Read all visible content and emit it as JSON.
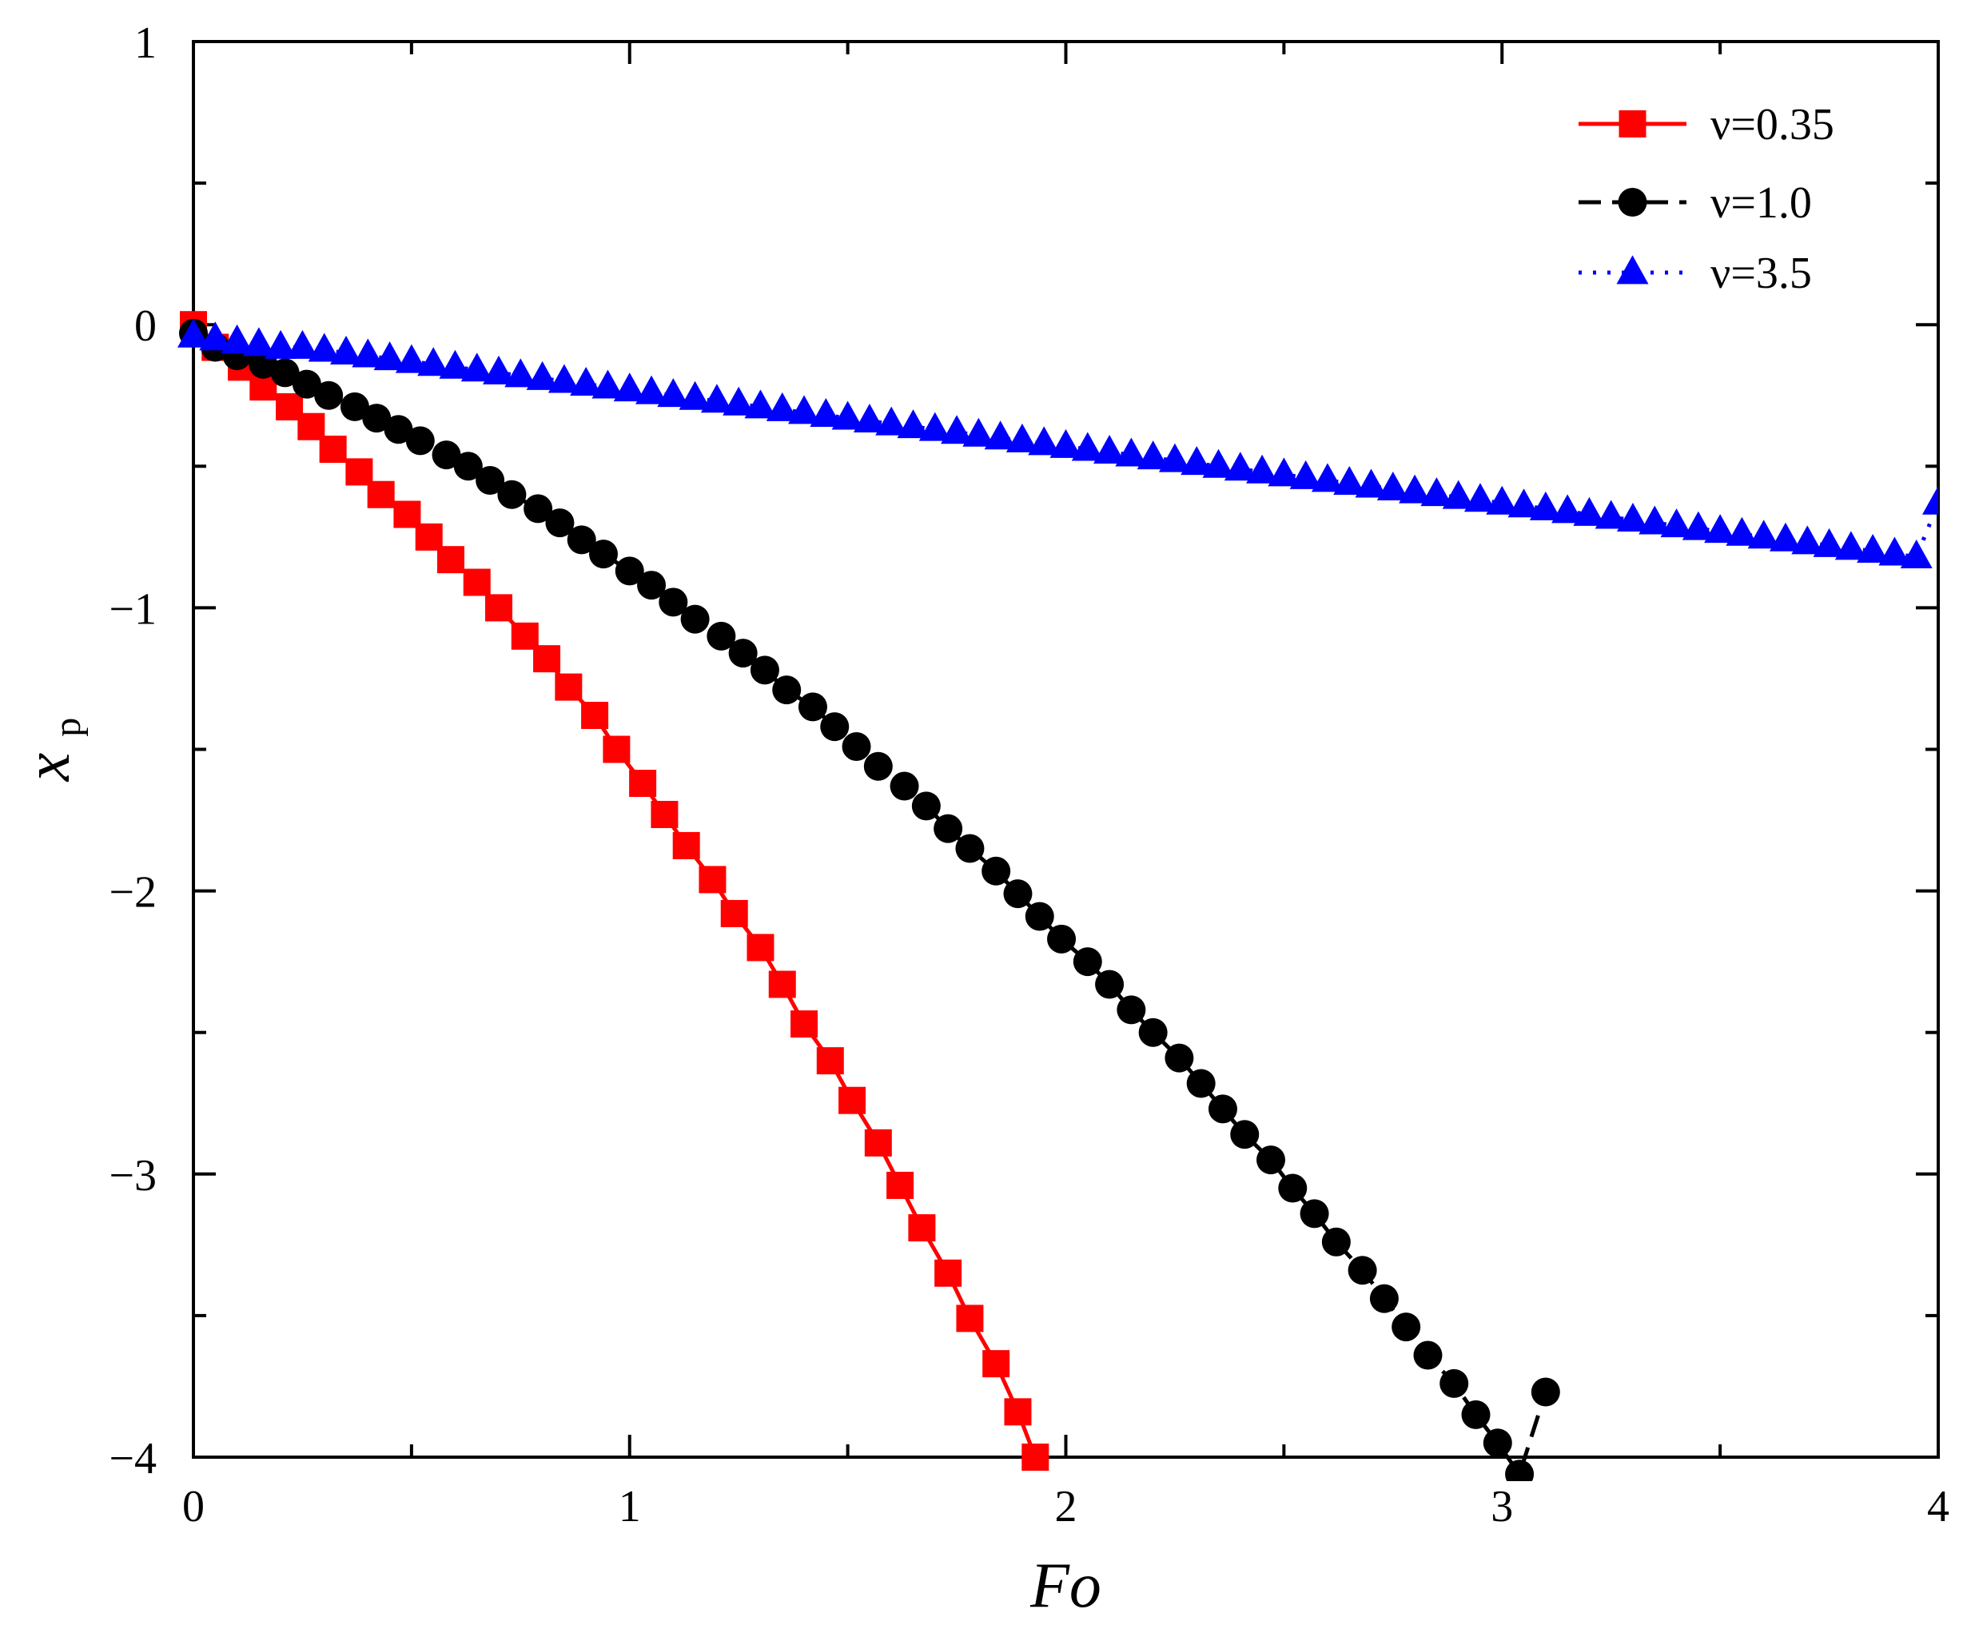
{
  "chart_data": {
    "type": "scatter",
    "xlabel": "Fo",
    "ylabel_main": "x",
    "ylabel_sub": "p",
    "xlim": [
      0,
      4
    ],
    "ylim": [
      -4,
      1
    ],
    "x_ticks": [
      {
        "value": 0,
        "label": "0"
      },
      {
        "value": 1,
        "label": "1"
      },
      {
        "value": 2,
        "label": "2"
      },
      {
        "value": 3,
        "label": "3"
      },
      {
        "value": 4,
        "label": "4"
      }
    ],
    "y_ticks": [
      {
        "value": 1,
        "label": "1"
      },
      {
        "value": 0,
        "label": "0"
      },
      {
        "value": -1,
        "label": "−1"
      },
      {
        "value": -2,
        "label": "−2"
      },
      {
        "value": -3,
        "label": "−3"
      },
      {
        "value": -4,
        "label": "−4"
      }
    ],
    "x_minor_step": 0.5,
    "y_minor_step": 0.5,
    "grid": false,
    "legend_position": "top-right",
    "series": [
      {
        "name": "ν=0.35",
        "color": "#ff0000",
        "marker": "square",
        "line": "solid",
        "points": [
          [
            0,
            0
          ],
          [
            0.05,
            -0.08
          ],
          [
            0.11,
            -0.15
          ],
          [
            0.16,
            -0.22
          ],
          [
            0.22,
            -0.29
          ],
          [
            0.27,
            -0.36
          ],
          [
            0.32,
            -0.44
          ],
          [
            0.38,
            -0.52
          ],
          [
            0.43,
            -0.6
          ],
          [
            0.49,
            -0.67
          ],
          [
            0.54,
            -0.75
          ],
          [
            0.59,
            -0.83
          ],
          [
            0.65,
            -0.91
          ],
          [
            0.7,
            -1.0
          ],
          [
            0.76,
            -1.1
          ],
          [
            0.81,
            -1.18
          ],
          [
            0.86,
            -1.28
          ],
          [
            0.92,
            -1.38
          ],
          [
            0.97,
            -1.5
          ],
          [
            1.03,
            -1.62
          ],
          [
            1.08,
            -1.73
          ],
          [
            1.13,
            -1.84
          ],
          [
            1.19,
            -1.96
          ],
          [
            1.24,
            -2.08
          ],
          [
            1.3,
            -2.2
          ],
          [
            1.35,
            -2.33
          ],
          [
            1.4,
            -2.47
          ],
          [
            1.46,
            -2.6
          ],
          [
            1.51,
            -2.74
          ],
          [
            1.57,
            -2.89
          ],
          [
            1.62,
            -3.04
          ],
          [
            1.67,
            -3.19
          ],
          [
            1.73,
            -3.35
          ],
          [
            1.78,
            -3.51
          ],
          [
            1.84,
            -3.67
          ],
          [
            1.89,
            -3.84
          ],
          [
            1.93,
            -4.0
          ]
        ]
      },
      {
        "name": "ν=1.0",
        "color": "#000000",
        "marker": "circle",
        "line": "dashed",
        "points": [
          [
            0,
            -0.03
          ],
          [
            0.05,
            -0.08
          ],
          [
            0.1,
            -0.11
          ],
          [
            0.16,
            -0.14
          ],
          [
            0.21,
            -0.17
          ],
          [
            0.26,
            -0.21
          ],
          [
            0.31,
            -0.25
          ],
          [
            0.37,
            -0.29
          ],
          [
            0.42,
            -0.33
          ],
          [
            0.47,
            -0.37
          ],
          [
            0.52,
            -0.41
          ],
          [
            0.58,
            -0.46
          ],
          [
            0.63,
            -0.5
          ],
          [
            0.68,
            -0.55
          ],
          [
            0.73,
            -0.6
          ],
          [
            0.79,
            -0.65
          ],
          [
            0.84,
            -0.7
          ],
          [
            0.89,
            -0.76
          ],
          [
            0.94,
            -0.81
          ],
          [
            1.0,
            -0.87
          ],
          [
            1.05,
            -0.92
          ],
          [
            1.1,
            -0.98
          ],
          [
            1.15,
            -1.04
          ],
          [
            1.21,
            -1.1
          ],
          [
            1.26,
            -1.16
          ],
          [
            1.31,
            -1.22
          ],
          [
            1.36,
            -1.29
          ],
          [
            1.42,
            -1.35
          ],
          [
            1.47,
            -1.42
          ],
          [
            1.52,
            -1.49
          ],
          [
            1.57,
            -1.56
          ],
          [
            1.63,
            -1.63
          ],
          [
            1.68,
            -1.7
          ],
          [
            1.73,
            -1.78
          ],
          [
            1.78,
            -1.85
          ],
          [
            1.84,
            -1.93
          ],
          [
            1.89,
            -2.01
          ],
          [
            1.94,
            -2.09
          ],
          [
            1.99,
            -2.17
          ],
          [
            2.05,
            -2.25
          ],
          [
            2.1,
            -2.33
          ],
          [
            2.15,
            -2.42
          ],
          [
            2.2,
            -2.5
          ],
          [
            2.26,
            -2.59
          ],
          [
            2.31,
            -2.68
          ],
          [
            2.36,
            -2.77
          ],
          [
            2.41,
            -2.86
          ],
          [
            2.47,
            -2.95
          ],
          [
            2.52,
            -3.05
          ],
          [
            2.57,
            -3.14
          ],
          [
            2.62,
            -3.24
          ],
          [
            2.68,
            -3.34
          ],
          [
            2.73,
            -3.44
          ],
          [
            2.78,
            -3.54
          ],
          [
            2.83,
            -3.64
          ],
          [
            2.89,
            -3.74
          ],
          [
            2.94,
            -3.85
          ],
          [
            2.99,
            -3.95
          ],
          [
            3.04,
            -4.06
          ],
          [
            3.1,
            -3.77
          ]
        ]
      },
      {
        "name": "ν=3.5",
        "color": "#0000ff",
        "marker": "triangle",
        "line": "dotted",
        "points": [
          [
            0,
            -0.04
          ],
          [
            0.05,
            -0.05
          ],
          [
            0.1,
            -0.06
          ],
          [
            0.15,
            -0.07
          ],
          [
            0.2,
            -0.08
          ],
          [
            0.25,
            -0.08
          ],
          [
            0.3,
            -0.09
          ],
          [
            0.35,
            -0.1
          ],
          [
            0.4,
            -0.11
          ],
          [
            0.45,
            -0.12
          ],
          [
            0.5,
            -0.13
          ],
          [
            0.55,
            -0.14
          ],
          [
            0.6,
            -0.15
          ],
          [
            0.65,
            -0.16
          ],
          [
            0.7,
            -0.17
          ],
          [
            0.75,
            -0.18
          ],
          [
            0.8,
            -0.19
          ],
          [
            0.85,
            -0.2
          ],
          [
            0.9,
            -0.21
          ],
          [
            0.95,
            -0.22
          ],
          [
            1.0,
            -0.23
          ],
          [
            1.05,
            -0.24
          ],
          [
            1.1,
            -0.25
          ],
          [
            1.15,
            -0.26
          ],
          [
            1.2,
            -0.27
          ],
          [
            1.25,
            -0.28
          ],
          [
            1.3,
            -0.29
          ],
          [
            1.35,
            -0.3
          ],
          [
            1.4,
            -0.31
          ],
          [
            1.45,
            -0.32
          ],
          [
            1.5,
            -0.33
          ],
          [
            1.55,
            -0.34
          ],
          [
            1.6,
            -0.35
          ],
          [
            1.65,
            -0.36
          ],
          [
            1.7,
            -0.37
          ],
          [
            1.75,
            -0.38
          ],
          [
            1.8,
            -0.39
          ],
          [
            1.85,
            -0.4
          ],
          [
            1.9,
            -0.41
          ],
          [
            1.95,
            -0.42
          ],
          [
            2.0,
            -0.43
          ],
          [
            2.05,
            -0.44
          ],
          [
            2.1,
            -0.45
          ],
          [
            2.15,
            -0.46
          ],
          [
            2.2,
            -0.47
          ],
          [
            2.25,
            -0.48
          ],
          [
            2.3,
            -0.49
          ],
          [
            2.35,
            -0.5
          ],
          [
            2.4,
            -0.51
          ],
          [
            2.45,
            -0.52
          ],
          [
            2.5,
            -0.53
          ],
          [
            2.55,
            -0.54
          ],
          [
            2.6,
            -0.55
          ],
          [
            2.65,
            -0.56
          ],
          [
            2.7,
            -0.57
          ],
          [
            2.75,
            -0.58
          ],
          [
            2.8,
            -0.59
          ],
          [
            2.85,
            -0.6
          ],
          [
            2.9,
            -0.61
          ],
          [
            2.95,
            -0.62
          ],
          [
            3.0,
            -0.63
          ],
          [
            3.05,
            -0.64
          ],
          [
            3.1,
            -0.65
          ],
          [
            3.15,
            -0.66
          ],
          [
            3.2,
            -0.67
          ],
          [
            3.25,
            -0.68
          ],
          [
            3.3,
            -0.69
          ],
          [
            3.35,
            -0.7
          ],
          [
            3.4,
            -0.71
          ],
          [
            3.45,
            -0.72
          ],
          [
            3.5,
            -0.73
          ],
          [
            3.55,
            -0.74
          ],
          [
            3.6,
            -0.75
          ],
          [
            3.65,
            -0.76
          ],
          [
            3.7,
            -0.77
          ],
          [
            3.75,
            -0.78
          ],
          [
            3.8,
            -0.79
          ],
          [
            3.85,
            -0.8
          ],
          [
            3.9,
            -0.81
          ],
          [
            3.95,
            -0.82
          ],
          [
            4.0,
            -0.63
          ]
        ]
      }
    ]
  }
}
